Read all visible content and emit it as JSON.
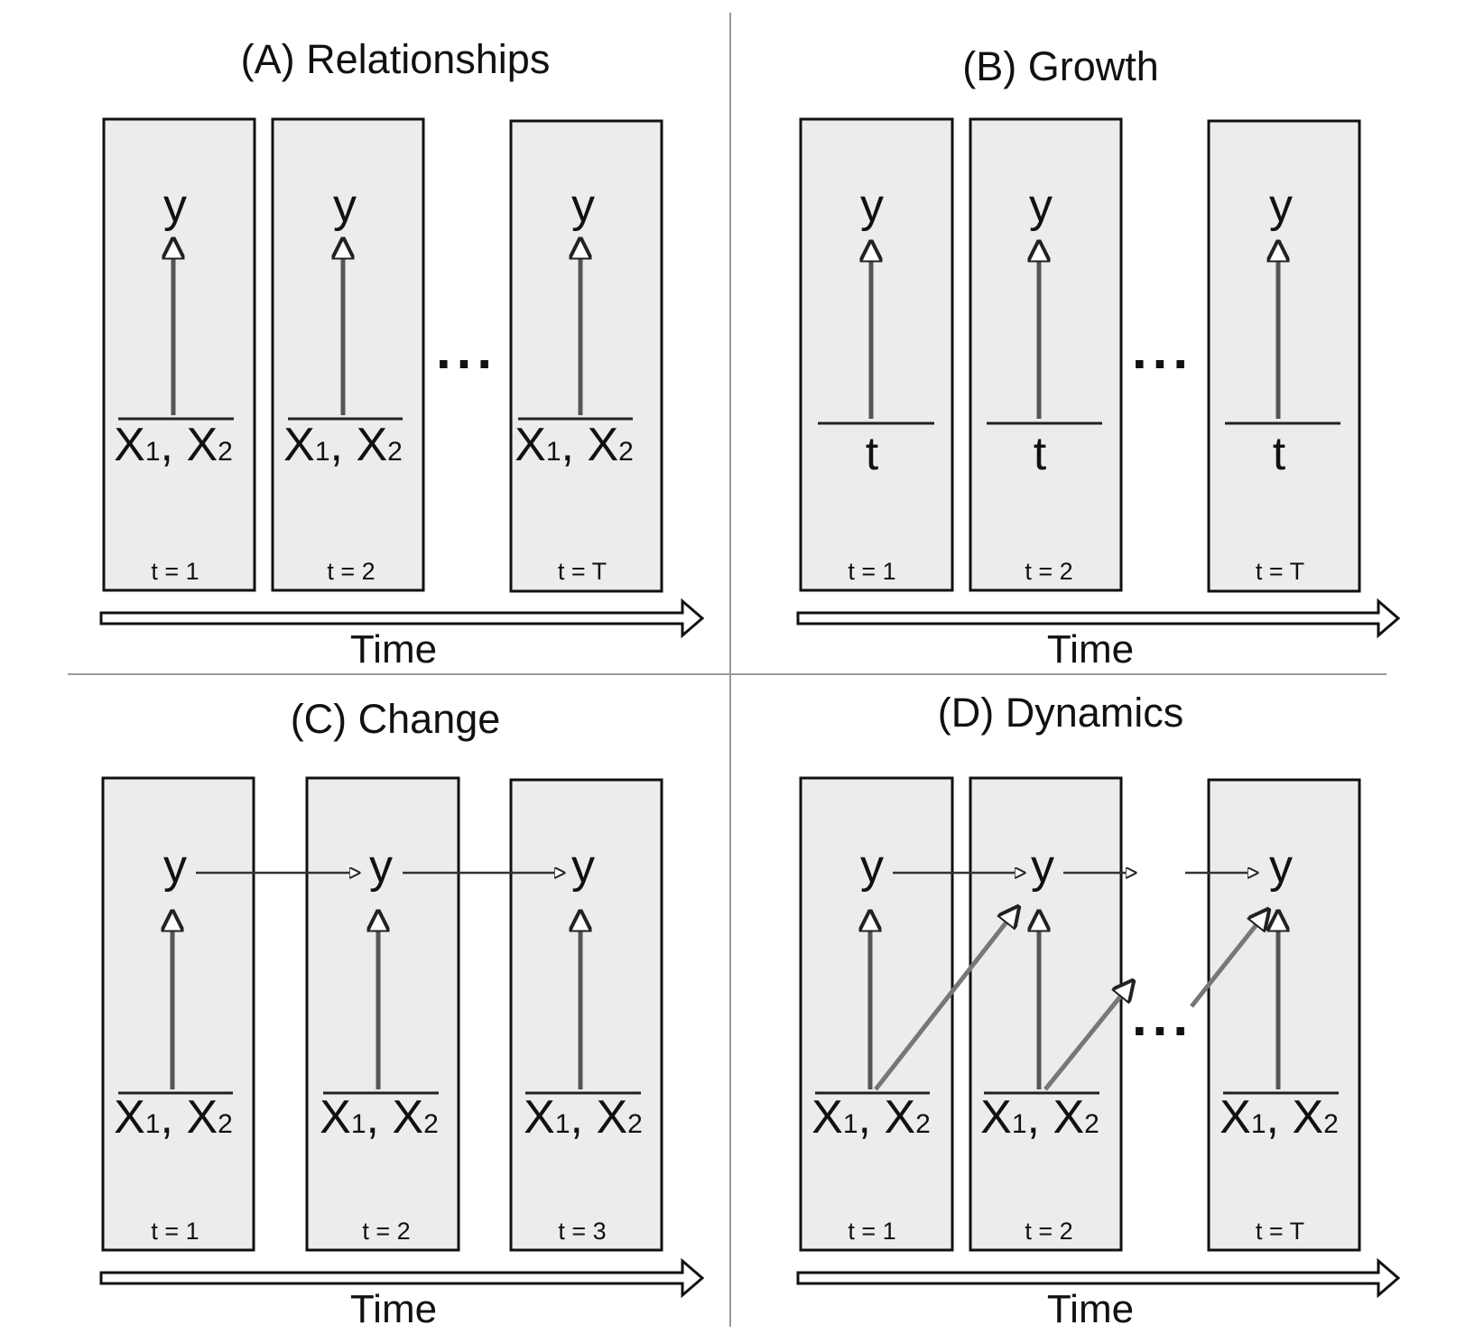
{
  "panels": {
    "A": {
      "title": "(A) Relationships",
      "time_label": "Time",
      "boxes": [
        {
          "outcome": "y",
          "predictor_main": "X",
          "predictor_sub1": "1",
          "predictor_sep": ", X",
          "predictor_sub2": "2",
          "t_label": "t = 1"
        },
        {
          "outcome": "y",
          "predictor_main": "X",
          "predictor_sub1": "1",
          "predictor_sep": ", X",
          "predictor_sub2": "2",
          "t_label": "t = 2"
        },
        {
          "outcome": "y",
          "predictor_main": "X",
          "predictor_sub1": "1",
          "predictor_sep": ", X",
          "predictor_sub2": "2",
          "t_label": "t = T"
        }
      ],
      "ellipsis": "..."
    },
    "B": {
      "title": "(B) Growth",
      "time_label": "Time",
      "boxes": [
        {
          "outcome": "y",
          "predictor": "t",
          "t_label": "t = 1"
        },
        {
          "outcome": "y",
          "predictor": "t",
          "t_label": "t = 2"
        },
        {
          "outcome": "y",
          "predictor": "t",
          "t_label": "t = T"
        }
      ],
      "ellipsis": "..."
    },
    "C": {
      "title": "(C) Change",
      "time_label": "Time",
      "boxes": [
        {
          "outcome": "y",
          "predictor_main": "X",
          "predictor_sub1": "1",
          "predictor_sep": ", X",
          "predictor_sub2": "2",
          "t_label": "t = 1"
        },
        {
          "outcome": "y",
          "predictor_main": "X",
          "predictor_sub1": "1",
          "predictor_sep": ", X",
          "predictor_sub2": "2",
          "t_label": "t = 2"
        },
        {
          "outcome": "y",
          "predictor_main": "X",
          "predictor_sub1": "1",
          "predictor_sep": ", X",
          "predictor_sub2": "2",
          "t_label": "t = 3"
        }
      ]
    },
    "D": {
      "title": "(D) Dynamics",
      "time_label": "Time",
      "boxes": [
        {
          "outcome": "y",
          "predictor_main": "X",
          "predictor_sub1": "1",
          "predictor_sep": ", X",
          "predictor_sub2": "2",
          "t_label": "t = 1"
        },
        {
          "outcome": "y",
          "predictor_main": "X",
          "predictor_sub1": "1",
          "predictor_sep": ", X",
          "predictor_sub2": "2",
          "t_label": "t = 2"
        },
        {
          "outcome": "y",
          "predictor_main": "X",
          "predictor_sub1": "1",
          "predictor_sep": ", X",
          "predictor_sub2": "2",
          "t_label": "t = T"
        }
      ],
      "ellipsis": "..."
    }
  }
}
